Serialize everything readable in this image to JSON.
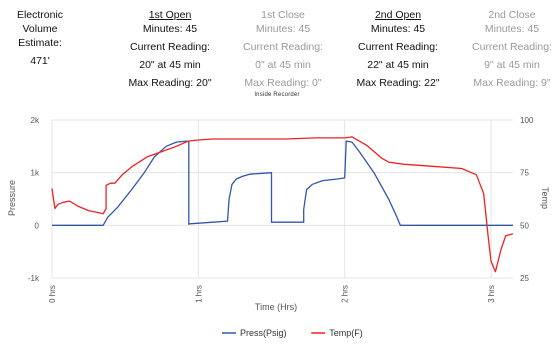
{
  "summary": {
    "volume": {
      "label": "Electronic Volume Estimate:",
      "value": "471'"
    },
    "first_open": {
      "title": "1st Open",
      "minutes": "Minutes: 45",
      "current_label": "Current Reading:",
      "current_value": "20\" at 45 min",
      "max": "Max Reading: 20\""
    },
    "first_close": {
      "title": "1st Close",
      "minutes": "Minutes: 45",
      "current_label": "Current Reading:",
      "current_value": "0\" at 45 min",
      "max": "Max Reading: 0\""
    },
    "second_open": {
      "title": "2nd Open",
      "minutes": "Minutes: 45",
      "current_label": "Current Reading:",
      "current_value": "22\" at 45 min",
      "max": "Max Reading: 22\""
    },
    "second_close": {
      "title": "2nd Close",
      "minutes": "Minutes: 45",
      "current_label": "Current Reading:",
      "current_value": "9\" at 45 min",
      "max": "Max Reading: 9\""
    }
  },
  "chart_data": {
    "type": "line",
    "title": "Inside Recorder",
    "xlabel": "Time (Hrs)",
    "ylabel_left": "Pressure",
    "ylabel_right": "Temp",
    "xlim": [
      0,
      3.15
    ],
    "ylim_left": [
      -1000,
      2000
    ],
    "ylim_right": [
      25,
      100
    ],
    "x_ticks": [
      0,
      1,
      2,
      3
    ],
    "x_tick_labels": [
      "0 hrs",
      "1 hrs",
      "2 hrs",
      "3 hrs"
    ],
    "y_ticks_left": [
      -1000,
      0,
      1000,
      2000
    ],
    "y_tick_labels_left": [
      "-1k",
      "0",
      "1k",
      "2k"
    ],
    "y_ticks_right": [
      25,
      50,
      75,
      100
    ],
    "y_tick_labels_right": [
      "25",
      "50",
      "75",
      "100"
    ],
    "grid": true,
    "legend_position": "bottom",
    "series": [
      {
        "name": "Press(Psig)",
        "axis": "left",
        "color": "#3355aa",
        "x": [
          0,
          0.35,
          0.38,
          0.45,
          0.55,
          0.63,
          0.7,
          0.78,
          0.85,
          0.92,
          0.935,
          0.935,
          0.94,
          1.1,
          1.2,
          1.2,
          1.21,
          1.23,
          1.26,
          1.3,
          1.35,
          1.45,
          1.5,
          1.5,
          1.51,
          1.72,
          1.72,
          1.74,
          1.78,
          1.85,
          1.95,
          2.0,
          2.0,
          2.01,
          2.05,
          2.1,
          2.2,
          2.3,
          2.35,
          2.38,
          2.45,
          2.5,
          2.6,
          3.15
        ],
        "y": [
          0,
          0,
          150,
          350,
          700,
          1000,
          1300,
          1500,
          1580,
          1600,
          1600,
          20,
          30,
          60,
          80,
          100,
          500,
          780,
          880,
          930,
          970,
          990,
          1000,
          60,
          60,
          60,
          300,
          680,
          780,
          850,
          880,
          900,
          900,
          1600,
          1580,
          1400,
          1000,
          500,
          200,
          0,
          0,
          0,
          0,
          0
        ]
      },
      {
        "name": "Temp(F)",
        "axis": "right",
        "color": "#ee2222",
        "x": [
          0,
          0.02,
          0.04,
          0.08,
          0.12,
          0.18,
          0.25,
          0.32,
          0.35,
          0.37,
          0.37,
          0.4,
          0.43,
          0.48,
          0.55,
          0.65,
          0.75,
          0.85,
          0.93,
          1.0,
          1.1,
          1.2,
          1.4,
          1.6,
          1.8,
          2.0,
          2.05,
          2.15,
          2.25,
          2.3,
          2.4,
          2.6,
          2.8,
          2.9,
          2.95,
          2.98,
          3.0,
          3.03,
          3.07,
          3.1,
          3.15
        ],
        "y": [
          67.5,
          58,
          60,
          61,
          61.5,
          59,
          57,
          56,
          55.5,
          58,
          69,
          70,
          70,
          74,
          78,
          82.5,
          85,
          87.5,
          90,
          90.5,
          91,
          91,
          91,
          91,
          91.5,
          91.5,
          92,
          88,
          82,
          80,
          79,
          78,
          77,
          74,
          65,
          45,
          33,
          28,
          39,
          45,
          46
        ]
      }
    ]
  }
}
